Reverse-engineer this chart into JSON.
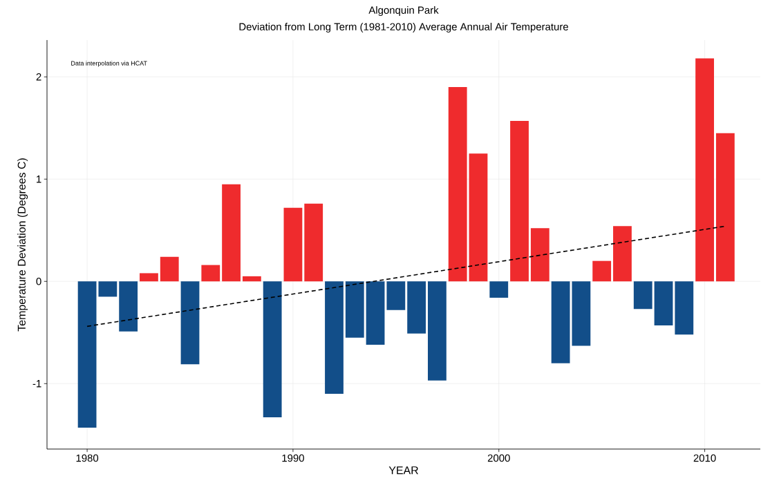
{
  "chart_data": {
    "type": "bar",
    "title": "Algonquin Park",
    "subtitle": "Deviation from Long Term (1981-2010) Average Annual Air Temperature",
    "xlabel": "YEAR",
    "ylabel": "Temperature Deviation (Degrees C)",
    "annotations": [
      "Data interpolation via HCAT"
    ],
    "xlim": [
      1978.05,
      2012.7
    ],
    "ylim": [
      -1.64,
      2.36
    ],
    "xticks": [
      1980,
      1990,
      2000,
      2010
    ],
    "yticks": [
      -1,
      0,
      1,
      2
    ],
    "grid": true,
    "series": [
      {
        "x": [
          1980,
          1981,
          1982,
          1983,
          1984,
          1985,
          1986,
          1987,
          1988,
          1989,
          1990,
          1991,
          1992,
          1993,
          1994,
          1995,
          1996,
          1997,
          1998,
          1999,
          2000,
          2001,
          2002,
          2003,
          2004,
          2005,
          2006,
          2007,
          2008,
          2009,
          2010,
          2011
        ],
        "values": [
          -1.43,
          -0.15,
          -0.49,
          0.08,
          0.24,
          -0.81,
          0.16,
          0.95,
          0.05,
          -1.33,
          0.72,
          0.76,
          -1.1,
          -0.55,
          -0.62,
          -0.28,
          -0.51,
          -0.97,
          1.9,
          1.25,
          -0.16,
          1.57,
          0.52,
          -0.8,
          -0.63,
          0.2,
          0.54,
          -0.27,
          -0.43,
          -0.52,
          2.18,
          1.45
        ],
        "colors": [
          "#124e89",
          "#124e89",
          "#124e89",
          "#ef2b2d",
          "#ef2b2d",
          "#124e89",
          "#ef2b2d",
          "#ef2b2d",
          "#ef2b2d",
          "#124e89",
          "#ef2b2d",
          "#ef2b2d",
          "#124e89",
          "#124e89",
          "#124e89",
          "#124e89",
          "#124e89",
          "#124e89",
          "#ef2b2d",
          "#ef2b2d",
          "#124e89",
          "#ef2b2d",
          "#ef2b2d",
          "#124e89",
          "#124e89",
          "#ef2b2d",
          "#ef2b2d",
          "#124e89",
          "#124e89",
          "#124e89",
          "#ef2b2d",
          "#ef2b2d"
        ]
      },
      {
        "type": "line",
        "x": [
          1980,
          2011
        ],
        "values": [
          -0.44,
          0.54
        ],
        "color": "#000000",
        "line_style": "dashed"
      }
    ]
  }
}
